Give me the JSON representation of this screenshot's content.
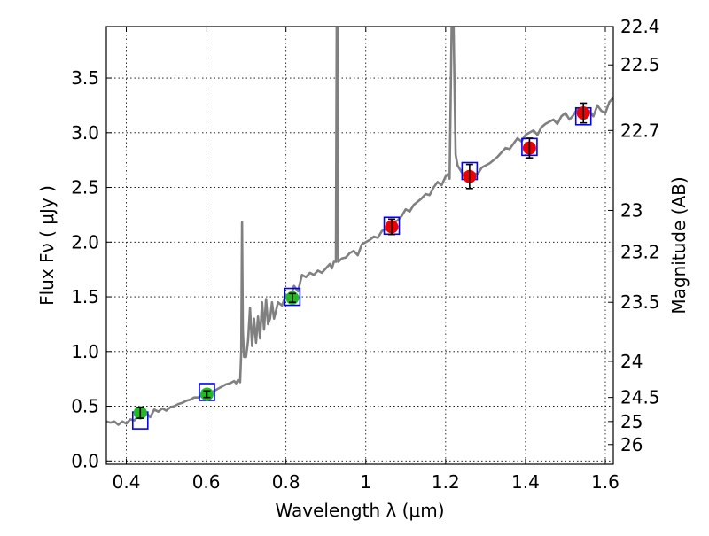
{
  "chart_data": {
    "type": "scatter",
    "title": "",
    "xlabel": "Wavelength  λ (μm)",
    "ylabel": "Flux  Fν  ( μJy )",
    "y2label": "Magnitude (AB)",
    "xlim": [
      0.35,
      1.62
    ],
    "ylim": [
      -0.03,
      3.97
    ],
    "grid": true,
    "x_ticks": [
      0.4,
      0.6,
      0.8,
      1.0,
      1.2,
      1.4,
      1.6
    ],
    "x_tick_labels": [
      "0.4",
      "0.6",
      "0.8",
      "1",
      "1.2",
      "1.4",
      "1.6"
    ],
    "y_ticks": [
      0.0,
      0.5,
      1.0,
      1.5,
      2.0,
      2.5,
      3.0,
      3.5
    ],
    "y_tick_labels": [
      "0.0",
      "0.5",
      "1.0",
      "1.5",
      "2.0",
      "2.5",
      "3.0",
      "3.5"
    ],
    "y2_ticks": [
      {
        "label": "22.4",
        "flux": 3.97
      },
      {
        "label": "22.5",
        "flux": 3.62
      },
      {
        "label": "22.7",
        "flux": 3.02
      },
      {
        "label": "23",
        "flux": 2.29
      },
      {
        "label": "23.2",
        "flux": 1.91
      },
      {
        "label": "23.5",
        "flux": 1.45
      },
      {
        "label": "24",
        "flux": 0.91
      },
      {
        "label": "24.5",
        "flux": 0.58
      },
      {
        "label": "25",
        "flux": 0.36
      },
      {
        "label": "26",
        "flux": 0.15
      }
    ],
    "spectrum": {
      "color": "#808080",
      "points": [
        [
          0.35,
          0.36
        ],
        [
          0.36,
          0.35
        ],
        [
          0.37,
          0.36
        ],
        [
          0.38,
          0.33
        ],
        [
          0.39,
          0.36
        ],
        [
          0.4,
          0.34
        ],
        [
          0.41,
          0.38
        ],
        [
          0.42,
          0.37
        ],
        [
          0.43,
          0.41
        ],
        [
          0.44,
          0.4
        ],
        [
          0.45,
          0.44
        ],
        [
          0.46,
          0.4
        ],
        [
          0.47,
          0.47
        ],
        [
          0.48,
          0.45
        ],
        [
          0.49,
          0.48
        ],
        [
          0.5,
          0.46
        ],
        [
          0.51,
          0.49
        ],
        [
          0.52,
          0.5
        ],
        [
          0.53,
          0.52
        ],
        [
          0.54,
          0.53
        ],
        [
          0.55,
          0.55
        ],
        [
          0.56,
          0.56
        ],
        [
          0.57,
          0.58
        ],
        [
          0.58,
          0.58
        ],
        [
          0.59,
          0.6
        ],
        [
          0.6,
          0.6
        ],
        [
          0.61,
          0.62
        ],
        [
          0.62,
          0.64
        ],
        [
          0.63,
          0.66
        ],
        [
          0.64,
          0.68
        ],
        [
          0.65,
          0.7
        ],
        [
          0.66,
          0.71
        ],
        [
          0.67,
          0.73
        ],
        [
          0.675,
          0.71
        ],
        [
          0.68,
          0.74
        ],
        [
          0.685,
          0.72
        ],
        [
          0.688,
          1.0
        ],
        [
          0.69,
          2.18
        ],
        [
          0.692,
          1.2
        ],
        [
          0.695,
          0.95
        ],
        [
          0.7,
          0.95
        ],
        [
          0.705,
          1.1
        ],
        [
          0.71,
          1.4
        ],
        [
          0.715,
          1.05
        ],
        [
          0.72,
          1.3
        ],
        [
          0.725,
          1.08
        ],
        [
          0.73,
          1.32
        ],
        [
          0.735,
          1.12
        ],
        [
          0.74,
          1.45
        ],
        [
          0.745,
          1.2
        ],
        [
          0.75,
          1.48
        ],
        [
          0.755,
          1.25
        ],
        [
          0.76,
          1.3
        ],
        [
          0.765,
          1.45
        ],
        [
          0.77,
          1.3
        ],
        [
          0.78,
          1.45
        ],
        [
          0.79,
          1.42
        ],
        [
          0.8,
          1.52
        ],
        [
          0.81,
          1.48
        ],
        [
          0.82,
          1.6
        ],
        [
          0.83,
          1.55
        ],
        [
          0.84,
          1.7
        ],
        [
          0.85,
          1.68
        ],
        [
          0.86,
          1.72
        ],
        [
          0.87,
          1.7
        ],
        [
          0.88,
          1.74
        ],
        [
          0.89,
          1.72
        ],
        [
          0.9,
          1.76
        ],
        [
          0.91,
          1.8
        ],
        [
          0.915,
          1.76
        ],
        [
          0.92,
          1.82
        ],
        [
          0.925,
          1.82
        ],
        [
          0.927,
          3.97
        ],
        [
          0.929,
          3.97
        ],
        [
          0.931,
          1.82
        ],
        [
          0.94,
          1.85
        ],
        [
          0.95,
          1.86
        ],
        [
          0.96,
          1.9
        ],
        [
          0.97,
          1.92
        ],
        [
          0.98,
          1.88
        ],
        [
          0.99,
          1.98
        ],
        [
          1.0,
          2.0
        ],
        [
          1.01,
          2.02
        ],
        [
          1.02,
          2.05
        ],
        [
          1.03,
          2.04
        ],
        [
          1.04,
          2.1
        ],
        [
          1.05,
          2.12
        ],
        [
          1.06,
          2.15
        ],
        [
          1.07,
          2.18
        ],
        [
          1.08,
          2.2
        ],
        [
          1.09,
          2.24
        ],
        [
          1.1,
          2.3
        ],
        [
          1.11,
          2.28
        ],
        [
          1.12,
          2.34
        ],
        [
          1.13,
          2.37
        ],
        [
          1.14,
          2.4
        ],
        [
          1.15,
          2.44
        ],
        [
          1.16,
          2.43
        ],
        [
          1.17,
          2.5
        ],
        [
          1.18,
          2.55
        ],
        [
          1.19,
          2.52
        ],
        [
          1.2,
          2.6
        ],
        [
          1.205,
          2.62
        ],
        [
          1.21,
          2.58
        ],
        [
          1.215,
          3.97
        ],
        [
          1.22,
          3.97
        ],
        [
          1.225,
          2.8
        ],
        [
          1.23,
          2.7
        ],
        [
          1.24,
          2.64
        ],
        [
          1.25,
          2.58
        ],
        [
          1.26,
          2.6
        ],
        [
          1.27,
          2.63
        ],
        [
          1.28,
          2.62
        ],
        [
          1.29,
          2.68
        ],
        [
          1.3,
          2.7
        ],
        [
          1.31,
          2.72
        ],
        [
          1.32,
          2.75
        ],
        [
          1.33,
          2.78
        ],
        [
          1.34,
          2.82
        ],
        [
          1.35,
          2.86
        ],
        [
          1.36,
          2.85
        ],
        [
          1.37,
          2.9
        ],
        [
          1.38,
          2.95
        ],
        [
          1.39,
          2.92
        ],
        [
          1.4,
          2.98
        ],
        [
          1.41,
          3.0
        ],
        [
          1.42,
          3.02
        ],
        [
          1.43,
          2.98
        ],
        [
          1.44,
          3.05
        ],
        [
          1.45,
          3.08
        ],
        [
          1.46,
          3.1
        ],
        [
          1.47,
          3.12
        ],
        [
          1.48,
          3.08
        ],
        [
          1.49,
          3.15
        ],
        [
          1.5,
          3.18
        ],
        [
          1.51,
          3.12
        ],
        [
          1.52,
          3.16
        ],
        [
          1.53,
          3.22
        ],
        [
          1.54,
          3.2
        ],
        [
          1.55,
          3.18
        ],
        [
          1.56,
          3.2
        ],
        [
          1.57,
          3.15
        ],
        [
          1.58,
          3.25
        ],
        [
          1.59,
          3.2
        ],
        [
          1.6,
          3.18
        ],
        [
          1.61,
          3.28
        ],
        [
          1.62,
          3.32
        ]
      ]
    },
    "model_photometry": {
      "color": "#0000ff",
      "points": [
        [
          0.435,
          0.37
        ],
        [
          0.602,
          0.63
        ],
        [
          0.816,
          1.5
        ],
        [
          1.065,
          2.15
        ],
        [
          1.26,
          2.65
        ],
        [
          1.41,
          2.87
        ],
        [
          1.545,
          3.15
        ]
      ]
    },
    "observed_photometry": [
      {
        "x": 0.435,
        "y": 0.44,
        "err": 0.05,
        "color": "#22bb22"
      },
      {
        "x": 0.602,
        "y": 0.61,
        "err": 0.03,
        "color": "#22bb22"
      },
      {
        "x": 0.816,
        "y": 1.49,
        "err": 0.04,
        "color": "#22bb22"
      },
      {
        "x": 1.065,
        "y": 2.14,
        "err": 0.07,
        "color": "#ee0000"
      },
      {
        "x": 1.26,
        "y": 2.6,
        "err": 0.11,
        "color": "#ee0000"
      },
      {
        "x": 1.41,
        "y": 2.86,
        "err": 0.09,
        "color": "#ee0000"
      },
      {
        "x": 1.545,
        "y": 3.18,
        "err": 0.09,
        "color": "#ee0000"
      }
    ]
  }
}
